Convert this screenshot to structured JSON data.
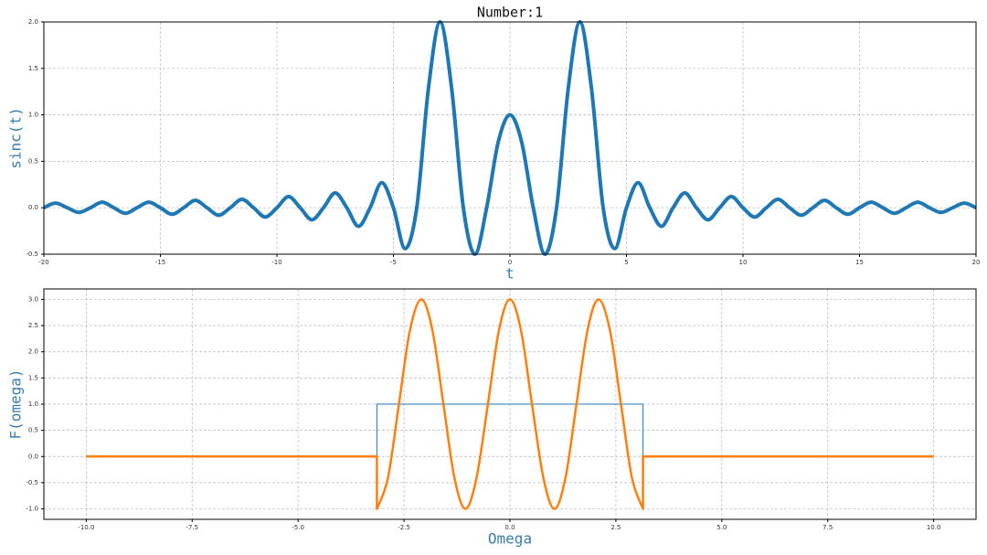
{
  "chart_data": [
    {
      "type": "line",
      "title": "Number:1",
      "xlabel": "t",
      "ylabel": "sinc(t)",
      "xlim": [
        -20,
        20
      ],
      "ylim": [
        -0.5,
        2.0
      ],
      "grid": true,
      "xticks": [
        -20,
        -15,
        -10,
        -5,
        0,
        5,
        10,
        15,
        20
      ],
      "yticks": [
        -0.5,
        {
          "value": 0,
          "label": "0.0"
        },
        0.5,
        {
          "value": 1,
          "label": "1.0"
        },
        1.5,
        {
          "value": 2,
          "label": "2.0"
        }
      ],
      "series": [
        {
          "color": "#1f77b4",
          "width": 4,
          "x": [
            -20,
            -19.5,
            -19,
            -18.5,
            -18,
            -17.5,
            -17,
            -16.5,
            -16,
            -15.5,
            -15,
            -14.5,
            -14,
            -13.5,
            -13,
            -12.5,
            -12,
            -11.5,
            -11,
            -10.5,
            -10,
            -9.5,
            -9,
            -8.5,
            -8,
            -7.5,
            -7,
            -6.5,
            -6,
            -5.5,
            -5,
            -4.5,
            -4,
            -3.5,
            -3,
            -2.5,
            -2,
            -1.5,
            -1,
            -0.5,
            0,
            0.5,
            1,
            1.5,
            2,
            2.5,
            3,
            3.5,
            4,
            4.5,
            5,
            5.5,
            6,
            6.5,
            7,
            7.5,
            8,
            8.5,
            9,
            9.5,
            10,
            10.5,
            11,
            11.5,
            12,
            12.5,
            13,
            13.5,
            14,
            14.5,
            15,
            15.5,
            16,
            16.5,
            17,
            17.5,
            18,
            18.5,
            19,
            19.5,
            20
          ],
          "values": [
            0,
            0.05,
            0,
            -0.05,
            0,
            0.06,
            0,
            -0.06,
            0,
            0.06,
            0,
            -0.07,
            0,
            0.08,
            0,
            -0.08,
            0,
            0.09,
            0,
            -0.1,
            0,
            0.12,
            0,
            -0.13,
            0,
            0.16,
            0,
            -0.2,
            0,
            0.27,
            0,
            -0.44,
            0,
            1.28,
            2,
            1.28,
            0,
            -0.5,
            0,
            0.71,
            1,
            0.71,
            0,
            -0.5,
            0,
            1.28,
            2,
            1.28,
            0,
            -0.44,
            0,
            0.27,
            0,
            -0.2,
            0,
            0.16,
            0,
            -0.13,
            0,
            0.12,
            0,
            -0.1,
            0,
            0.09,
            0,
            -0.08,
            0,
            0.08,
            0,
            -0.07,
            0,
            0.06,
            0,
            -0.06,
            0,
            0.06,
            0,
            -0.05,
            0,
            0.05,
            0
          ]
        }
      ]
    },
    {
      "type": "line",
      "xlabel": "Omega",
      "ylabel": "F(omega)",
      "xlim": [
        -11,
        11
      ],
      "ylim": [
        -1.2,
        3.2
      ],
      "grid": true,
      "xticks": [
        {
          "value": -10,
          "label": "-10.0"
        },
        -7.5,
        {
          "value": -5,
          "label": "-5.0"
        },
        -2.5,
        {
          "value": 0,
          "label": "0.0"
        },
        2.5,
        {
          "value": 5,
          "label": "5.0"
        },
        7.5,
        {
          "value": 10,
          "label": "10.0"
        }
      ],
      "yticks": [
        {
          "value": -1,
          "label": "-1.0"
        },
        -0.5,
        {
          "value": 0,
          "label": "0.0"
        },
        0.5,
        {
          "value": 1,
          "label": "1.0"
        },
        1.5,
        {
          "value": 2,
          "label": "2.0"
        },
        2.5,
        {
          "value": 3,
          "label": "3.0"
        }
      ],
      "series": [
        {
          "color": "#1f77b4",
          "width": 1,
          "x": [
            -10,
            -3.14,
            -3.14,
            3.14,
            3.14,
            10
          ],
          "values": [
            0,
            0,
            1,
            1,
            0,
            0
          ]
        },
        {
          "color": "#ff7f0e",
          "width": 2.5,
          "x": [
            -10,
            -3.14,
            -3.14,
            -2.88,
            -2.62,
            -2.36,
            -2.09,
            -1.83,
            -1.57,
            -1.31,
            -1.05,
            -0.79,
            -0.52,
            -0.26,
            0,
            0.26,
            0.52,
            0.79,
            1.05,
            1.31,
            1.57,
            1.83,
            2.09,
            2.36,
            2.62,
            2.88,
            3.14,
            3.14,
            10
          ],
          "values": [
            0,
            0,
            -1,
            -0.41,
            1,
            2.41,
            3,
            2.41,
            1,
            -0.41,
            -1,
            -0.41,
            1,
            2.41,
            3,
            2.41,
            1,
            -0.41,
            -1,
            -0.41,
            1,
            2.41,
            3,
            2.41,
            1,
            -0.41,
            -1,
            0,
            0
          ]
        }
      ]
    }
  ]
}
